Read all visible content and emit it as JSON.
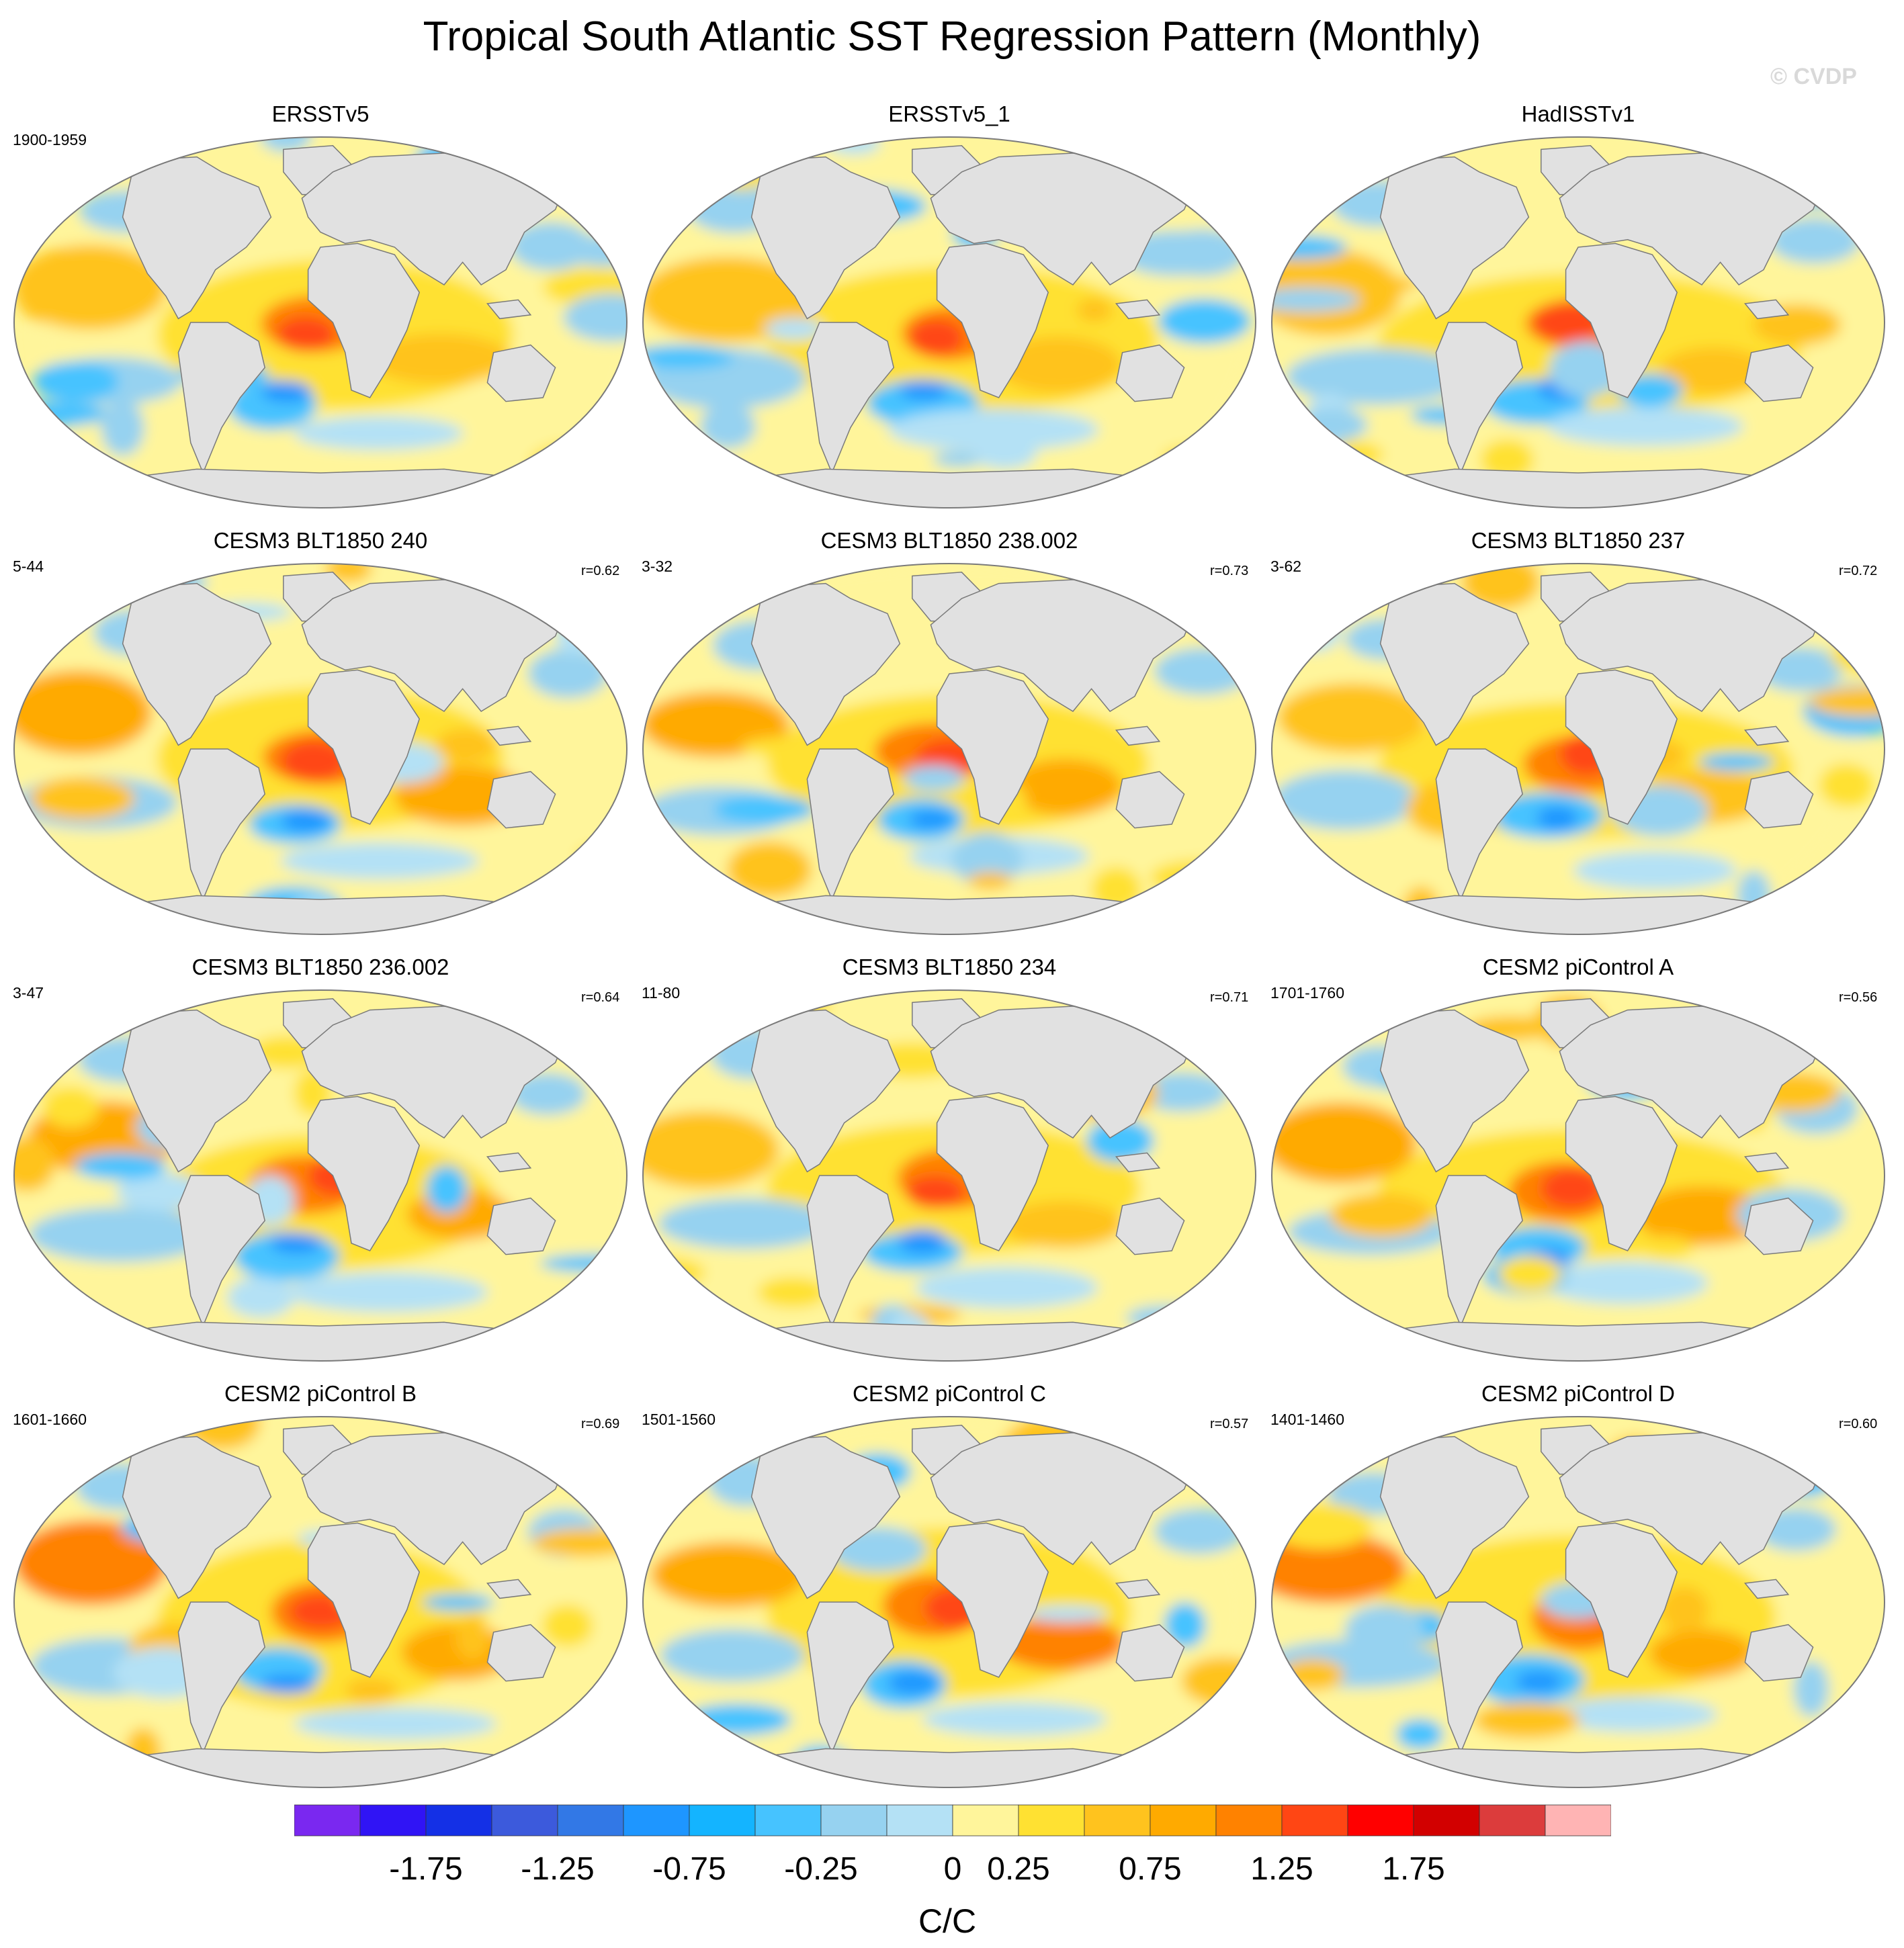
{
  "title": "Tropical South Atlantic SST Regression Pattern (Monthly)",
  "watermark": "© CVDP",
  "colors": {
    "land": "#e1e1e1",
    "coast": "#7a7a7a",
    "outline": "#7a7a7a"
  },
  "chart_data": {
    "type": "heatmap",
    "description_units": "C/C",
    "panels": [
      {
        "title": "ERSSTv5",
        "period": "1900-1959",
        "r": ""
      },
      {
        "title": "ERSSTv5_1",
        "period": "",
        "r": ""
      },
      {
        "title": "HadISSTv1",
        "period": "",
        "r": ""
      },
      {
        "title": "CESM3 BLT1850 240",
        "period": "5-44",
        "r": "r=0.62"
      },
      {
        "title": "CESM3 BLT1850 238.002",
        "period": "3-32",
        "r": "r=0.73"
      },
      {
        "title": "CESM3 BLT1850 237",
        "period": "3-62",
        "r": "r=0.72"
      },
      {
        "title": "CESM3 BLT1850 236.002",
        "period": "3-47",
        "r": "r=0.64"
      },
      {
        "title": "CESM3 BLT1850 234",
        "period": "11-80",
        "r": "r=0.71"
      },
      {
        "title": "CESM2 piControl A",
        "period": "1701-1760",
        "r": "r=0.56"
      },
      {
        "title": "CESM2 piControl B",
        "period": "1601-1660",
        "r": "r=0.69"
      },
      {
        "title": "CESM2 piControl C",
        "period": "1501-1560",
        "r": "r=0.57"
      },
      {
        "title": "CESM2 piControl D",
        "period": "1401-1460",
        "r": "r=0.60"
      }
    ],
    "colorbar": {
      "unit": "C/C",
      "colors": [
        "#7a28f0",
        "#3014f5",
        "#1430e6",
        "#3c5adc",
        "#3278e6",
        "#1e96ff",
        "#14b4ff",
        "#46c3ff",
        "#96d2f0",
        "#b4e1f5",
        "#fff59b",
        "#ffe132",
        "#ffc31e",
        "#ffaa00",
        "#ff8200",
        "#ff4614",
        "#ff0000",
        "#d20000",
        "#dc3c3c",
        "#ffb4b4"
      ],
      "tick_labels": [
        "-1.75",
        "-1.25",
        "-0.75",
        "-0.25",
        "0",
        "0.25",
        "0.75",
        "1.25",
        "1.75"
      ],
      "tick_boundary_index": [
        2,
        4,
        6,
        8,
        10,
        11,
        13,
        15,
        17
      ]
    }
  }
}
